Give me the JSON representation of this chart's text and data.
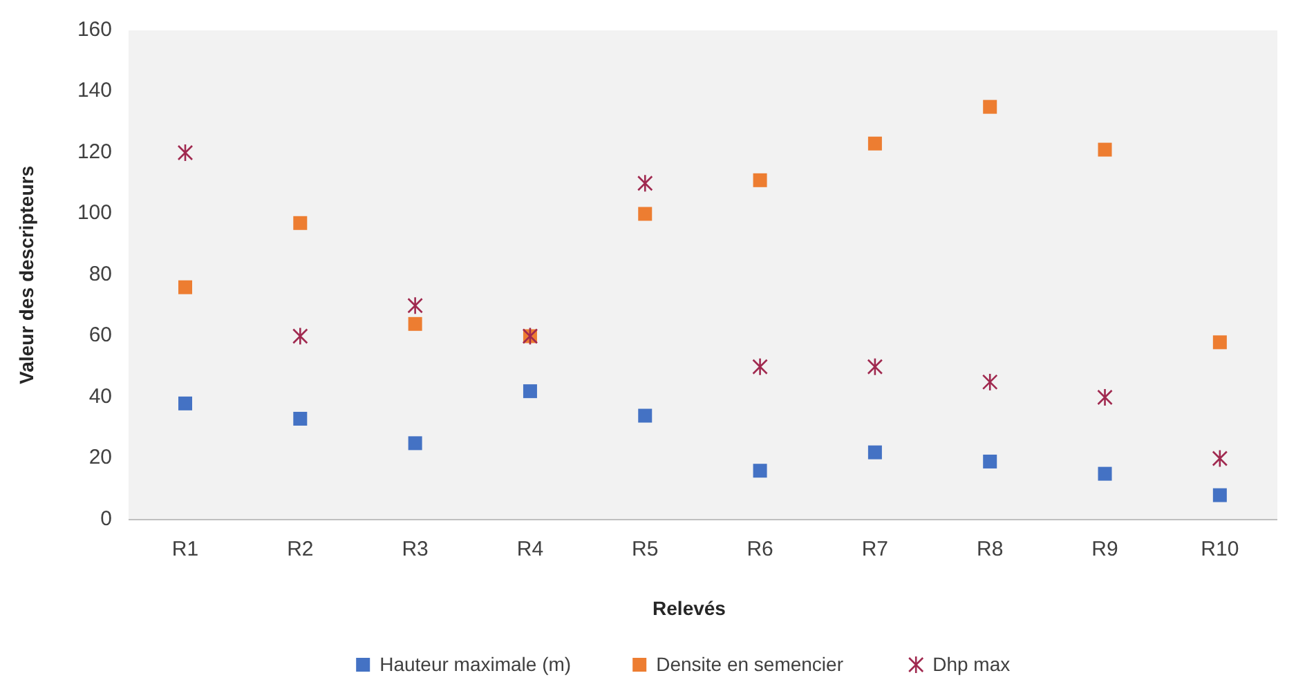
{
  "chart_data": {
    "type": "scatter",
    "xlabel": "Relevés",
    "ylabel": "Valeur des descripteurs",
    "categories": [
      "R1",
      "R2",
      "R3",
      "R4",
      "R5",
      "R6",
      "R7",
      "R8",
      "R9",
      "R10"
    ],
    "series": [
      {
        "name": "Hauteur maximale (m)",
        "color": "#4472c4",
        "marker": "square",
        "values": [
          38,
          33,
          25,
          42,
          34,
          16,
          22,
          19,
          15,
          8
        ]
      },
      {
        "name": "Densite en semencier",
        "color": "#ed7d31",
        "marker": "square",
        "values": [
          76,
          97,
          64,
          60,
          100,
          111,
          123,
          135,
          121,
          58
        ]
      },
      {
        "name": "Dhp max",
        "color": "#a0294f",
        "marker": "cross",
        "values": [
          120,
          60,
          70,
          60,
          110,
          50,
          50,
          45,
          40,
          20
        ]
      }
    ],
    "ylim": [
      0,
      160
    ],
    "yticks": [
      0,
      20,
      40,
      60,
      80,
      100,
      120,
      140,
      160
    ],
    "grid": false,
    "legend": "bottom"
  }
}
